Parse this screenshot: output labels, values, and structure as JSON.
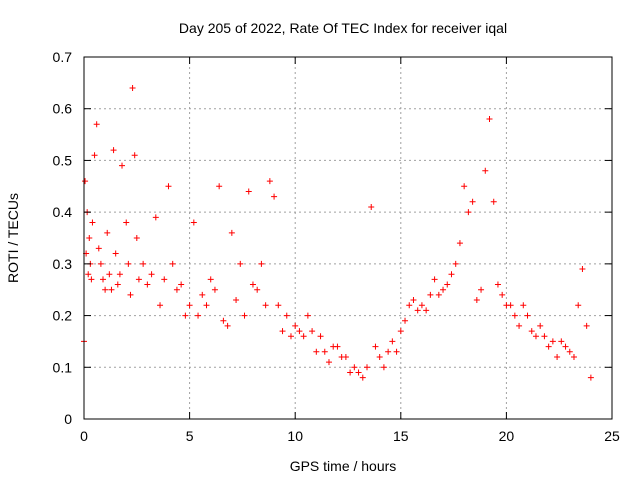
{
  "chart_data": {
    "type": "scatter",
    "title": "Day 205 of 2022, Rate Of TEC Index for receiver iqal",
    "xlabel": "GPS time / hours",
    "ylabel": "ROTI / TECUs",
    "xlim": [
      0,
      25
    ],
    "ylim": [
      0,
      0.7
    ],
    "xticks": [
      0,
      5,
      10,
      15,
      20,
      25
    ],
    "yticks": [
      0,
      0.1,
      0.2,
      0.3,
      0.4,
      0.5,
      0.6,
      0.7
    ],
    "grid": true,
    "marker": "+",
    "colors": {
      "points": "#ff0000",
      "grid": "#a0a0a0",
      "axes": "#000000"
    },
    "series": [
      {
        "x": [
          0.0,
          0.05,
          0.1,
          0.15,
          0.2,
          0.25,
          0.3,
          0.35,
          0.4,
          0.5,
          0.6,
          0.7,
          0.8,
          0.9,
          1.0,
          1.1,
          1.2,
          1.3,
          1.4,
          1.5,
          1.6,
          1.7,
          1.8,
          2.0,
          2.1,
          2.2,
          2.3,
          2.4,
          2.5,
          2.6,
          2.8,
          3.0,
          3.2,
          3.4,
          3.6,
          3.8,
          4.0,
          4.2,
          4.4,
          4.6,
          4.8,
          5.0,
          5.2,
          5.4,
          5.6,
          5.8,
          6.0,
          6.2,
          6.4,
          6.6,
          6.8,
          7.0,
          7.2,
          7.4,
          7.6,
          7.8,
          8.0,
          8.2,
          8.4,
          8.6,
          8.8,
          9.0,
          9.2,
          9.4,
          9.6,
          9.8,
          10.0,
          10.2,
          10.4,
          10.6,
          10.8,
          11.0,
          11.2,
          11.4,
          11.6,
          11.8,
          12.0,
          12.2,
          12.4,
          12.6,
          12.8,
          13.0,
          13.2,
          13.4,
          13.6,
          13.8,
          14.0,
          14.2,
          14.4,
          14.6,
          14.8,
          15.0,
          15.2,
          15.4,
          15.6,
          15.8,
          16.0,
          16.2,
          16.4,
          16.6,
          16.8,
          17.0,
          17.2,
          17.4,
          17.6,
          17.8,
          18.0,
          18.2,
          18.4,
          18.6,
          18.8,
          19.0,
          19.2,
          19.4,
          19.6,
          19.8,
          20.0,
          20.2,
          20.4,
          20.6,
          20.8,
          21.0,
          21.2,
          21.4,
          21.6,
          21.8,
          22.0,
          22.2,
          22.4,
          22.6,
          22.8,
          23.0,
          23.2,
          23.4,
          23.6,
          23.8,
          24.0
        ],
        "y": [
          0.15,
          0.46,
          0.32,
          0.4,
          0.28,
          0.35,
          0.3,
          0.27,
          0.38,
          0.51,
          0.57,
          0.33,
          0.3,
          0.27,
          0.25,
          0.36,
          0.28,
          0.25,
          0.52,
          0.32,
          0.26,
          0.28,
          0.49,
          0.38,
          0.3,
          0.24,
          0.64,
          0.51,
          0.35,
          0.27,
          0.3,
          0.26,
          0.28,
          0.39,
          0.22,
          0.27,
          0.45,
          0.3,
          0.25,
          0.26,
          0.2,
          0.22,
          0.38,
          0.2,
          0.24,
          0.22,
          0.27,
          0.25,
          0.45,
          0.19,
          0.18,
          0.36,
          0.23,
          0.3,
          0.2,
          0.44,
          0.26,
          0.25,
          0.3,
          0.22,
          0.46,
          0.43,
          0.22,
          0.17,
          0.2,
          0.16,
          0.18,
          0.17,
          0.16,
          0.2,
          0.17,
          0.13,
          0.16,
          0.13,
          0.11,
          0.14,
          0.14,
          0.12,
          0.12,
          0.09,
          0.1,
          0.09,
          0.08,
          0.1,
          0.41,
          0.14,
          0.12,
          0.1,
          0.13,
          0.15,
          0.13,
          0.17,
          0.19,
          0.22,
          0.23,
          0.21,
          0.22,
          0.21,
          0.24,
          0.27,
          0.24,
          0.25,
          0.26,
          0.28,
          0.3,
          0.34,
          0.45,
          0.4,
          0.42,
          0.23,
          0.25,
          0.48,
          0.58,
          0.42,
          0.26,
          0.24,
          0.22,
          0.22,
          0.2,
          0.18,
          0.22,
          0.2,
          0.17,
          0.16,
          0.18,
          0.16,
          0.14,
          0.15,
          0.12,
          0.15,
          0.14,
          0.13,
          0.12,
          0.22,
          0.29,
          0.18,
          0.08
        ]
      }
    ]
  }
}
